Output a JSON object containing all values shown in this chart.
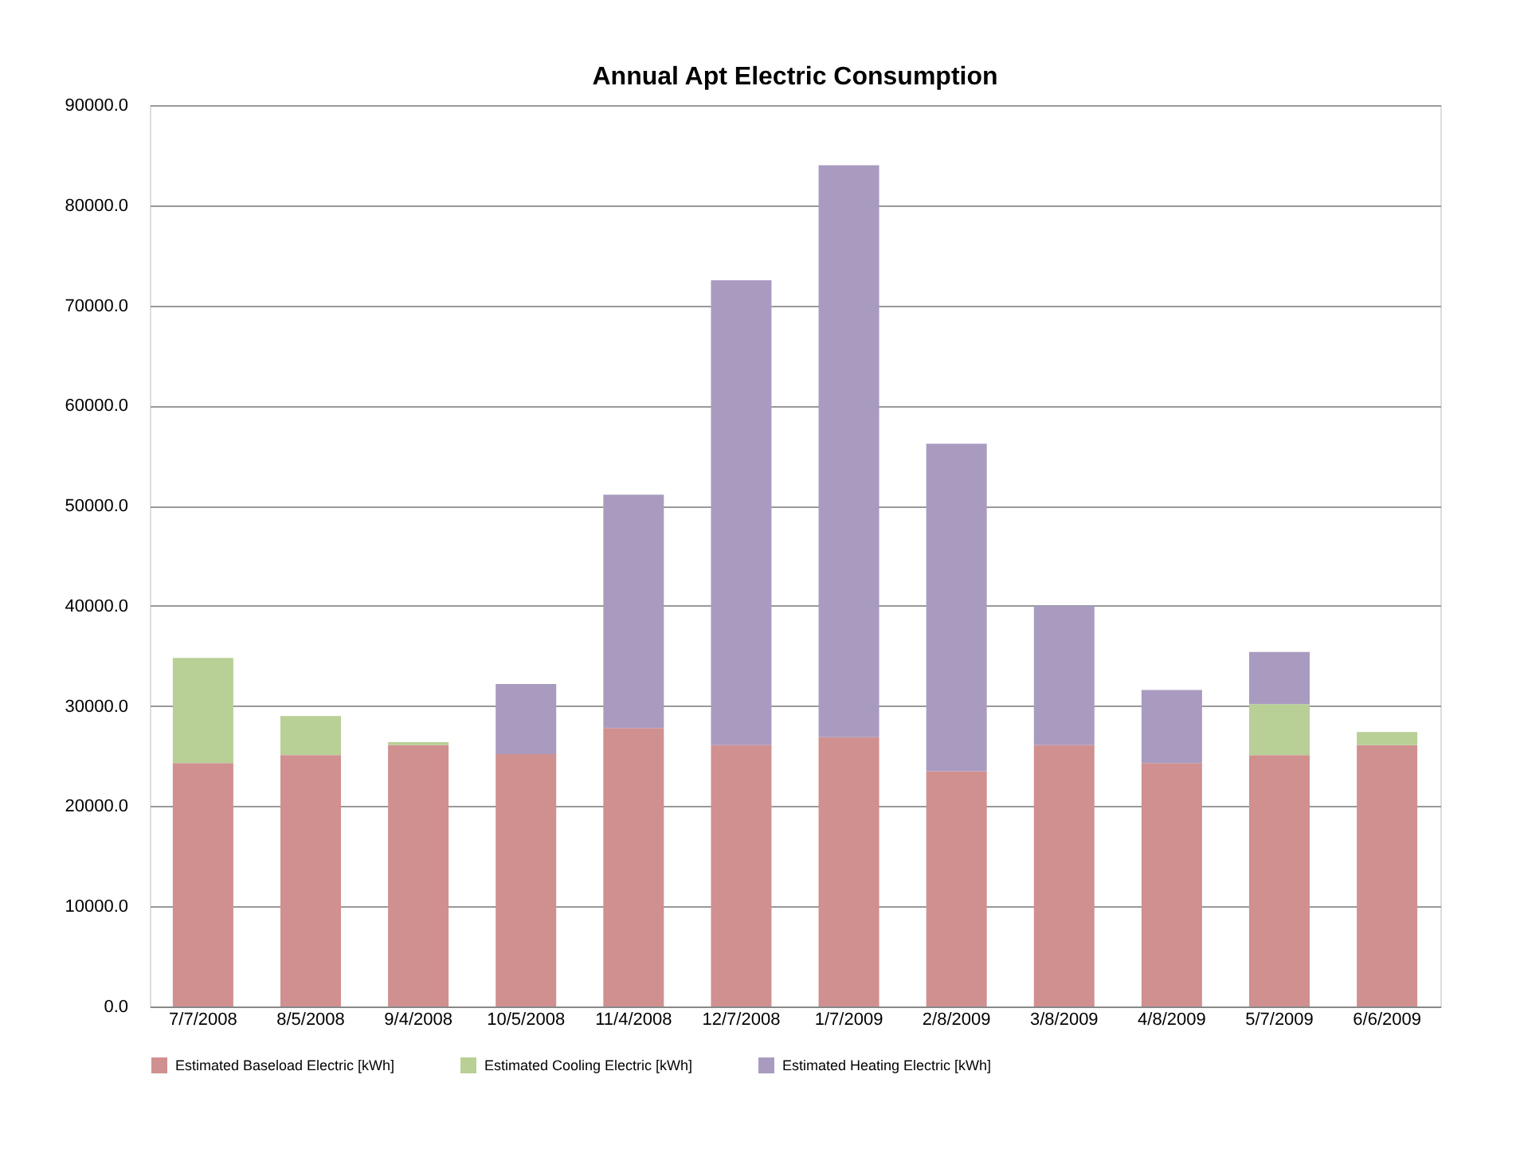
{
  "chart_data": {
    "type": "bar",
    "title": "Annual Apt Electric Consumption",
    "stacked": true,
    "categories": [
      "7/7/2008",
      "8/5/2008",
      "9/4/2008",
      "10/5/2008",
      "11/4/2008",
      "12/7/2008",
      "1/7/2009",
      "2/8/2009",
      "3/8/2009",
      "4/8/2009",
      "5/7/2009",
      "6/6/2009"
    ],
    "series": [
      {
        "name": "Estimated Baseload Electric [kWh]",
        "color": "#d09090",
        "values": [
          24300,
          25100,
          26100,
          25200,
          27800,
          26100,
          26900,
          23500,
          26100,
          24300,
          25100,
          26100
        ]
      },
      {
        "name": "Estimated Cooling Electric [kWh]",
        "color": "#b8cf96",
        "values": [
          10500,
          3900,
          300,
          null,
          null,
          null,
          null,
          null,
          null,
          null,
          5100,
          1300
        ]
      },
      {
        "name": "Estimated Heating Electric [kWh]",
        "color": "#a99bc0",
        "values": [
          null,
          null,
          null,
          7000,
          23300,
          46400,
          57100,
          32700,
          13900,
          7300,
          5200,
          null
        ]
      }
    ],
    "ylim": [
      0,
      90000
    ],
    "yticks": [
      {
        "value": 0,
        "label": "0.0"
      },
      {
        "value": 10000,
        "label": "10000.0"
      },
      {
        "value": 20000,
        "label": "20000.0"
      },
      {
        "value": 30000,
        "label": "30000.0"
      },
      {
        "value": 40000,
        "label": "40000.0"
      },
      {
        "value": 50000,
        "label": "50000.0"
      },
      {
        "value": 60000,
        "label": "60000.0"
      },
      {
        "value": 70000,
        "label": "70000.0"
      },
      {
        "value": 80000,
        "label": "80000.0"
      },
      {
        "value": 90000,
        "label": "90000.0"
      }
    ],
    "grid": "y",
    "legend": "bottom"
  }
}
